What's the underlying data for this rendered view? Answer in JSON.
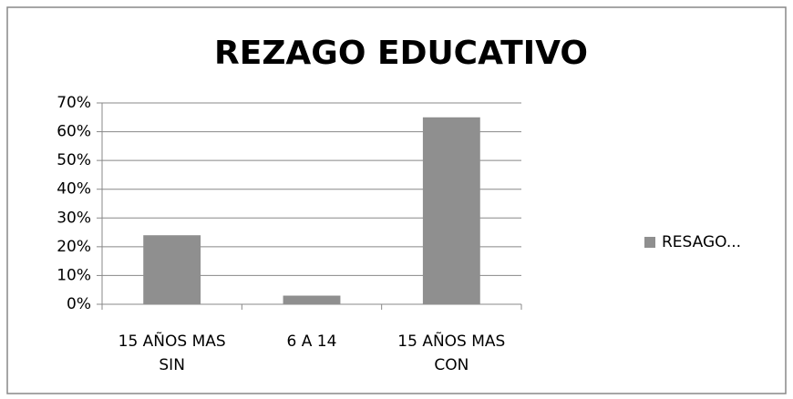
{
  "chart_data": {
    "type": "bar",
    "title": "REZAGO EDUCATIVO",
    "categories": [
      "15 AÑOS MAS SIN",
      "6 A 14",
      "15 AÑOS MAS CON"
    ],
    "series": [
      {
        "name": "RESAGO...",
        "color": "#8f8f8f",
        "values": [
          24,
          3,
          65
        ]
      }
    ],
    "ylim": [
      0,
      70
    ],
    "yticks": [
      {
        "value": 0,
        "label": "0%"
      },
      {
        "value": 10,
        "label": "10%"
      },
      {
        "value": 20,
        "label": "20%"
      },
      {
        "value": 30,
        "label": "30%"
      },
      {
        "value": 40,
        "label": "40%"
      },
      {
        "value": 50,
        "label": "50%"
      },
      {
        "value": 60,
        "label": "60%"
      },
      {
        "value": 70,
        "label": "70%"
      }
    ],
    "grid": true,
    "legend": "right"
  }
}
